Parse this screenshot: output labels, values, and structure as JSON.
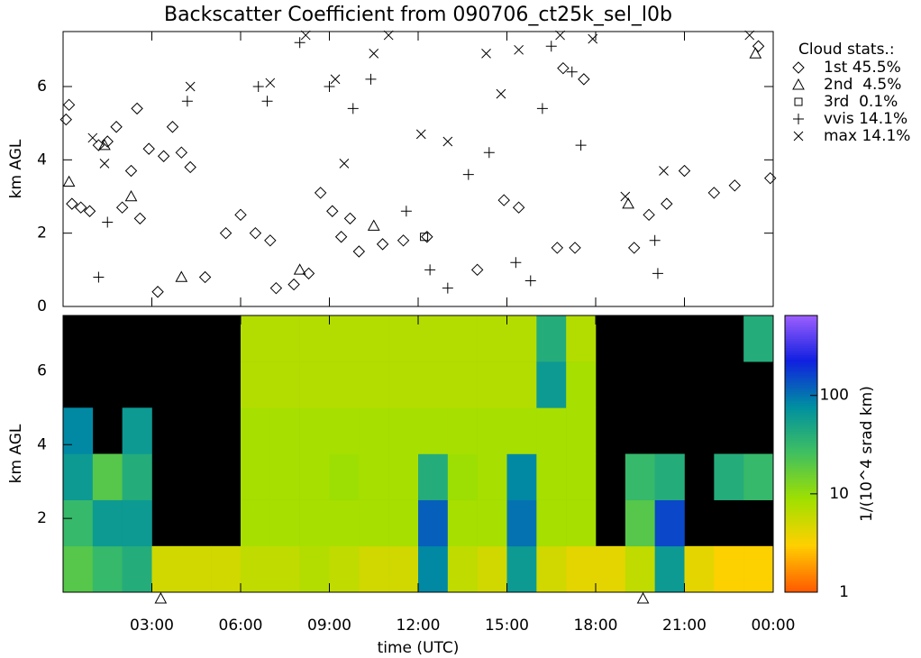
{
  "title": "Backscatter Coefficient from 090706_ct25k_sel_l0b",
  "chart_data": [
    {
      "type": "scatter",
      "y_label": "km AGL",
      "xlim": [
        0,
        24
      ],
      "ylim": [
        0,
        7.5
      ],
      "yticks": [
        0,
        2,
        4,
        6
      ],
      "legend_title": "Cloud stats.:",
      "legend": "right",
      "series": [
        {
          "name": "1st 45.5%",
          "marker": "diamond",
          "color": "#000000",
          "x": [
            0.1,
            0.2,
            0.3,
            0.6,
            0.9,
            1.2,
            1.5,
            1.8,
            2.0,
            2.3,
            2.5,
            2.6,
            2.9,
            3.2,
            3.4,
            3.7,
            4.0,
            4.3,
            4.8,
            5.5,
            6.0,
            6.5,
            7.0,
            7.2,
            7.8,
            8.3,
            8.7,
            9.1,
            9.4,
            9.7,
            10.0,
            10.8,
            11.5,
            12.3,
            14.0,
            14.9,
            15.4,
            16.7,
            17.3,
            16.9,
            17.6,
            19.3,
            19.8,
            20.4,
            21.0,
            22.0,
            22.7,
            23.5,
            23.9
          ],
          "values": [
            5.1,
            5.5,
            2.8,
            2.7,
            2.6,
            4.4,
            4.5,
            4.9,
            2.7,
            3.7,
            5.4,
            2.4,
            4.3,
            0.4,
            4.1,
            4.9,
            4.2,
            3.8,
            0.8,
            2.0,
            2.5,
            2.0,
            1.8,
            0.5,
            0.6,
            0.9,
            3.1,
            2.6,
            1.9,
            2.4,
            1.5,
            1.7,
            1.8,
            1.9,
            1.0,
            2.9,
            2.7,
            1.6,
            1.6,
            6.5,
            6.2,
            1.6,
            2.5,
            2.8,
            3.7,
            3.1,
            3.3,
            7.1,
            3.5
          ]
        },
        {
          "name": "2nd  4.5%",
          "marker": "triangle",
          "color": "#000000",
          "x": [
            0.2,
            1.4,
            2.3,
            4.0,
            8.0,
            10.5,
            19.1,
            23.4
          ],
          "values": [
            3.4,
            4.4,
            3.0,
            0.8,
            1.0,
            2.2,
            2.8,
            6.9
          ]
        },
        {
          "name": "3rd  0.1%",
          "marker": "square",
          "color": "#000000",
          "x": [
            12.2
          ],
          "values": [
            1.9
          ]
        },
        {
          "name": "vvis 14.1%",
          "marker": "plus",
          "color": "#000000",
          "x": [
            1.2,
            1.5,
            4.2,
            6.6,
            6.9,
            8.0,
            9.0,
            9.8,
            10.4,
            11.6,
            12.4,
            13.0,
            13.7,
            14.4,
            15.3,
            15.8,
            16.2,
            16.5,
            17.2,
            17.5,
            20.1,
            20.0
          ],
          "values": [
            0.8,
            2.3,
            5.6,
            6.0,
            5.6,
            7.2,
            6.0,
            5.4,
            6.2,
            2.6,
            1.0,
            0.5,
            3.6,
            4.2,
            1.2,
            0.7,
            5.4,
            7.1,
            6.4,
            4.4,
            0.9,
            1.8
          ]
        },
        {
          "name": "max 14.1%",
          "marker": "x",
          "color": "#000000",
          "x": [
            1.0,
            1.4,
            4.3,
            7.0,
            8.2,
            9.2,
            9.5,
            10.5,
            11.0,
            12.1,
            13.0,
            14.3,
            14.8,
            15.4,
            16.8,
            17.9,
            19.0,
            20.3,
            23.2
          ],
          "values": [
            4.6,
            3.9,
            6.0,
            6.1,
            7.4,
            6.2,
            3.9,
            6.9,
            7.4,
            4.7,
            4.5,
            6.9,
            5.8,
            7.0,
            7.4,
            7.3,
            3.0,
            3.7,
            7.4
          ]
        }
      ]
    },
    {
      "type": "heatmap",
      "y_label": "km AGL",
      "x_label": "time (UTC)",
      "xlim": [
        0,
        24
      ],
      "ylim": [
        0,
        7.5
      ],
      "yticks": [
        2,
        4,
        6
      ],
      "xticks": [
        {
          "value": 3,
          "label": "03:00"
        },
        {
          "value": 6,
          "label": "06:00"
        },
        {
          "value": 9,
          "label": "09:00"
        },
        {
          "value": 12,
          "label": "12:00"
        },
        {
          "value": 15,
          "label": "15:00"
        },
        {
          "value": 18,
          "label": "18:00"
        },
        {
          "value": 21,
          "label": "21:00"
        },
        {
          "value": 24,
          "label": "00:00"
        }
      ],
      "x_markers": [
        3.3,
        19.6
      ],
      "x_edges": [
        0,
        1,
        2,
        3,
        4,
        5,
        6,
        7,
        8,
        9,
        10,
        11,
        12,
        13,
        14,
        15,
        16,
        17,
        18,
        19,
        20,
        21,
        22,
        23,
        24
      ],
      "y_edges": [
        0,
        1.25,
        2.5,
        3.75,
        5,
        6.25,
        7.5
      ],
      "values": [
        [
          20,
          30,
          40,
          5,
          5,
          5,
          6,
          6,
          7,
          6,
          5,
          5,
          80,
          6,
          5,
          60,
          5,
          4,
          4,
          6,
          60,
          4,
          3,
          3
        ],
        [
          30,
          60,
          60,
          null,
          null,
          null,
          8,
          8,
          8,
          8,
          8,
          8,
          120,
          8,
          8,
          100,
          8,
          8,
          null,
          20,
          150,
          null,
          null,
          null
        ],
        [
          60,
          20,
          40,
          null,
          null,
          null,
          8,
          8,
          8,
          9,
          8,
          8,
          40,
          9,
          8,
          80,
          8,
          8,
          null,
          30,
          40,
          null,
          40,
          30
        ],
        [
          80,
          null,
          60,
          null,
          null,
          null,
          8,
          8,
          8,
          8,
          8,
          8,
          8,
          8,
          8,
          8,
          8,
          8,
          null,
          null,
          null,
          null,
          null,
          null
        ],
        [
          null,
          null,
          null,
          null,
          null,
          null,
          7,
          7,
          7,
          7,
          7,
          7,
          7,
          7,
          7,
          7,
          60,
          8,
          null,
          null,
          null,
          null,
          null,
          null
        ],
        [
          null,
          null,
          null,
          null,
          null,
          null,
          7,
          7,
          7,
          7,
          7,
          7,
          7,
          7,
          7,
          7,
          40,
          7,
          null,
          null,
          null,
          null,
          null,
          40
        ]
      ],
      "null_color": "#000000",
      "colorbar_label": "1/(10^4 srad km)",
      "clim": [
        1,
        650
      ],
      "log_scale": true,
      "colorbar_ticks": [
        1,
        10,
        100
      ],
      "colormap": [
        "#ff5a00",
        "#ffd000",
        "#a0e000",
        "#40c060",
        "#0090a0",
        "#1020e0",
        "#a060ff"
      ]
    }
  ]
}
